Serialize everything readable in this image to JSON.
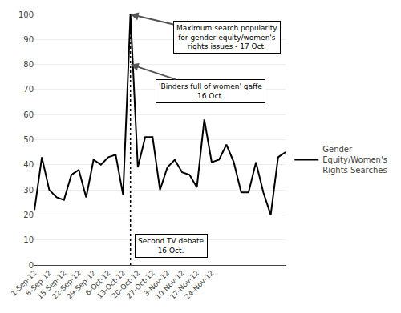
{
  "chart_data": {
    "type": "line",
    "categories": [
      "1-Sep-12",
      null,
      "8-Sep-12",
      null,
      "15-Sep-12",
      null,
      "22-Sep-12",
      null,
      "29-Sep-12",
      null,
      "6-Oct-12",
      null,
      "13-Oct-12",
      null,
      "20-Oct-12",
      null,
      "27-Oct-12",
      null,
      "3-Nov-12",
      null,
      "10-Nov-12",
      null,
      "17-Nov-12",
      null,
      "24-Nov-12",
      null,
      null,
      null,
      null,
      null,
      null,
      null,
      null,
      null,
      null
    ],
    "series": [
      {
        "name": "Gender\nEquity/Women's\nRights Searches",
        "color": "#000000",
        "values": [
          22,
          43,
          30,
          27,
          26,
          36,
          38,
          27,
          42,
          40,
          43,
          44,
          28,
          100,
          39,
          51,
          51,
          30,
          39,
          42,
          37,
          36,
          31,
          58,
          41,
          42,
          48,
          41,
          29,
          29,
          41,
          29,
          20,
          43,
          45
        ]
      }
    ],
    "ylim": [
      0,
      100
    ],
    "yticks": [
      0,
      10,
      20,
      30,
      40,
      50,
      60,
      70,
      80,
      90,
      100
    ],
    "grid": true,
    "legend": "right",
    "annotations": [
      "'Binders full of women' gaffe\n16 Oct.",
      "Maximum search popularity\nfor gender equity/women's\nrights issues - 17 Oct.",
      "Second TV debate\n16 Oct."
    ]
  }
}
